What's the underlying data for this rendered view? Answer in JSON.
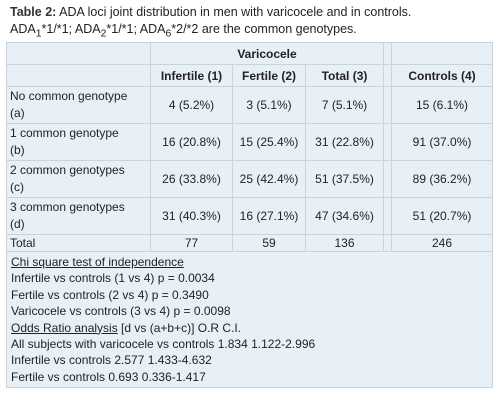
{
  "caption": {
    "label": "Table 2:",
    "line1": "ADA loci joint distribution in men with varicocele and in controls.",
    "line2": [
      {
        "text": "ADA"
      },
      {
        "text": "1",
        "sub": true
      },
      {
        "text": "*1/*1; ADA"
      },
      {
        "text": "2",
        "sub": true
      },
      {
        "text": "*1/*1; ADA"
      },
      {
        "text": "6",
        "sub": true
      },
      {
        "text": "*2/*2 are the common genotypes."
      }
    ]
  },
  "table": {
    "group_header": "Varicocele",
    "columns": [
      "Infertile (1)",
      "Fertile (2)",
      "Total (3)",
      "Controls (4)"
    ],
    "rows": [
      {
        "label": [
          "No common genotype",
          "(a)"
        ],
        "cells": [
          "4 (5.2%)",
          "3 (5.1%)",
          "7 (5.1%)",
          "15 (6.1%)"
        ]
      },
      {
        "label": [
          "1 common genotype",
          "(b)"
        ],
        "cells": [
          "16 (20.8%)",
          "15 (25.4%)",
          "31 (22.8%)",
          "91 (37.0%)"
        ]
      },
      {
        "label": [
          "2 common genotypes",
          "(c)"
        ],
        "cells": [
          "26 (33.8%)",
          "25 (42.4%)",
          "51 (37.5%)",
          "89 (36.2%)"
        ]
      },
      {
        "label": [
          "3 common genotypes",
          "(d)"
        ],
        "cells": [
          "31 (40.3%)",
          "16 (27.1%)",
          "47 (34.6%)",
          "51 (20.7%)"
        ]
      },
      {
        "label": [
          "Total"
        ],
        "cells": [
          "77",
          "59",
          "136",
          "246"
        ]
      }
    ]
  },
  "notes": [
    [
      {
        "text": "Chi square test of independence",
        "underline": true
      }
    ],
    [
      {
        "text": "Infertile vs controls (1 vs 4) p = 0.0034"
      }
    ],
    [
      {
        "text": "Fertile vs controls (2 vs 4) p = 0.3490"
      }
    ],
    [
      {
        "text": "Varicocele vs controls (3 vs 4) p = 0.0098"
      }
    ],
    [
      {
        "text": "Odds Ratio analysis",
        "underline": true
      },
      {
        "text": " [d vs (a+b+c)] O.R C.I."
      }
    ],
    [
      {
        "text": "All subjects with varicocele vs controls 1.834 1.122-2.996"
      }
    ],
    [
      {
        "text": "Infertile vs controls 2.577 1.433-4.632"
      }
    ],
    [
      {
        "text": "Fertile vs controls 0.693 0.336-1.417"
      }
    ]
  ]
}
